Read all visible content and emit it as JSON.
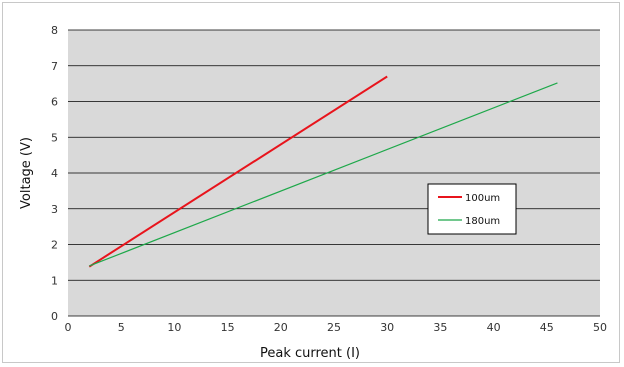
{
  "chart_data": {
    "type": "line",
    "title": "",
    "xlabel": "Peak current (I)",
    "ylabel": "Voltage (V)",
    "xlim": [
      0,
      50
    ],
    "ylim": [
      0,
      8
    ],
    "x_ticks": [
      "0",
      "5",
      "10",
      "15",
      "20",
      "25",
      "30",
      "35",
      "40",
      "45",
      "50"
    ],
    "y_ticks": [
      "0",
      "1",
      "2",
      "3",
      "4",
      "5",
      "6",
      "7",
      "8"
    ],
    "grid": "horizontal",
    "legend_position": "right",
    "plot_background": "#d9d9d9",
    "series": [
      {
        "name": "100um",
        "color": "#e8141c",
        "points": [
          [
            2,
            1.38
          ],
          [
            30,
            6.7
          ]
        ]
      },
      {
        "name": "180um",
        "color": "#1ea84a",
        "points": [
          [
            2,
            1.4
          ],
          [
            46,
            6.52
          ]
        ]
      }
    ]
  }
}
